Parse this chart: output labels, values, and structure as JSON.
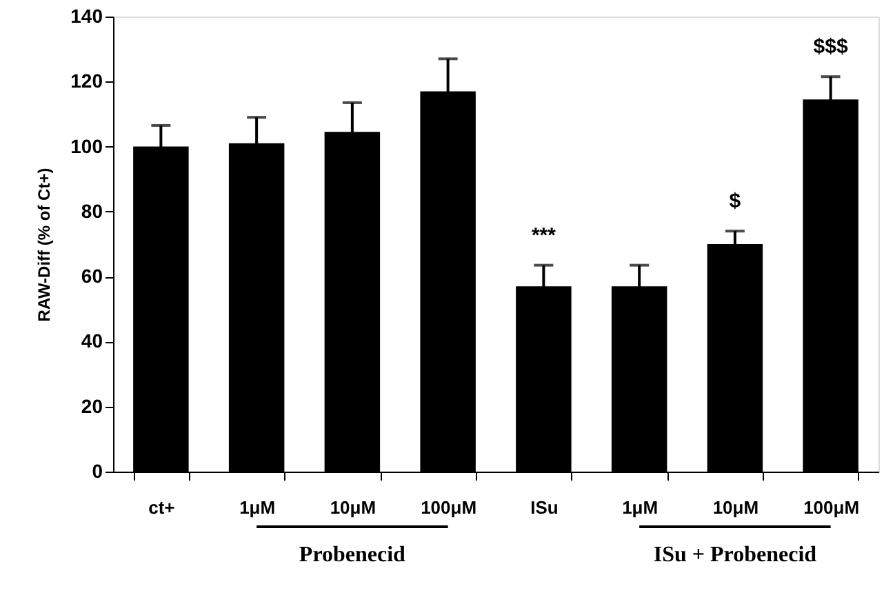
{
  "chart_data": {
    "type": "bar",
    "ylabel": "RAW-Diff (% of Ct+)",
    "categories": [
      "ct+",
      "1μM",
      "10μM",
      "100μM",
      "ISu",
      "1μM",
      "10μM",
      "100μM"
    ],
    "values": [
      100,
      101,
      104.5,
      117,
      57,
      57,
      70,
      114.5
    ],
    "errors": [
      6.5,
      8,
      9,
      10,
      6.5,
      6.5,
      4,
      7
    ],
    "color": "#000000",
    "ylim": [
      0,
      140
    ],
    "yticks": [
      0,
      20,
      40,
      60,
      80,
      100,
      120,
      140
    ],
    "grid": false,
    "annotations": [
      "***",
      "$",
      "$$$",
      "Probenecid",
      "ISu + Probenecid"
    ]
  }
}
